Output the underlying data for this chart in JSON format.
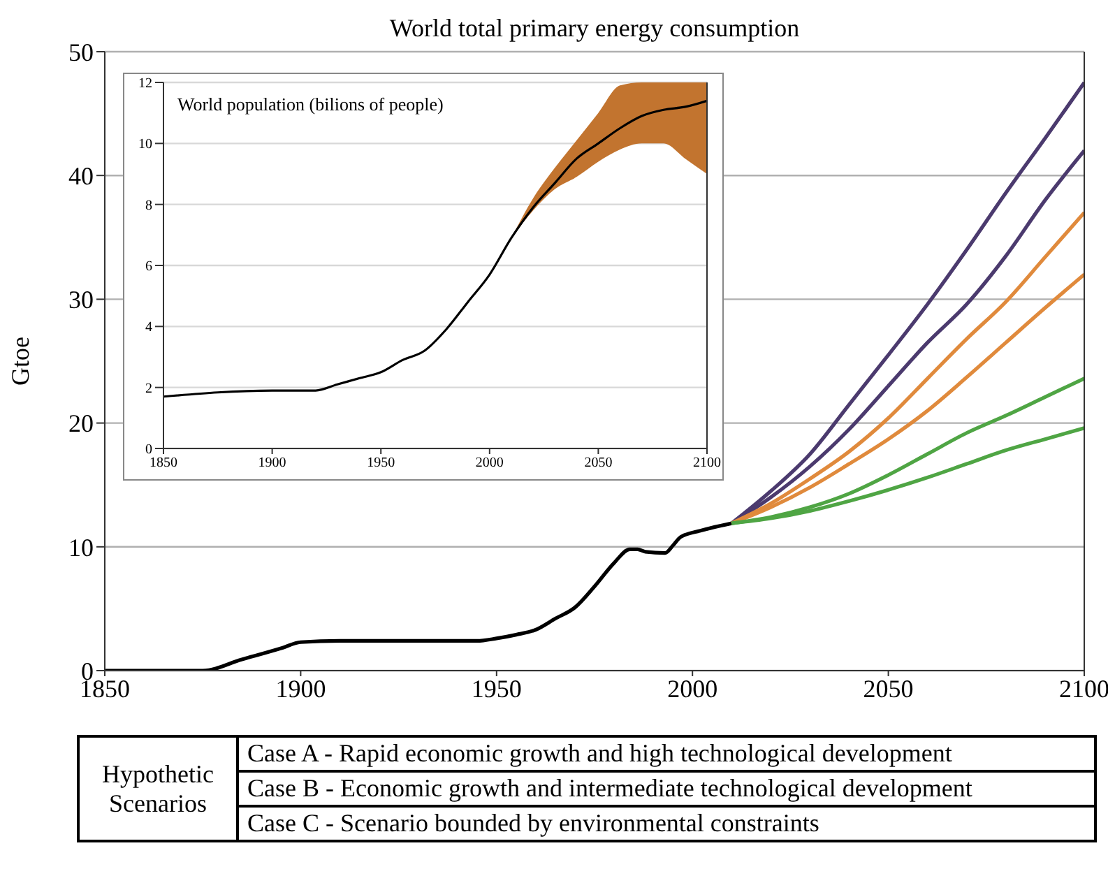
{
  "chart_data": [
    {
      "type": "line",
      "title": "World total primary energy consumption",
      "ylabel": "Gtoe",
      "xlim": [
        1850,
        2100
      ],
      "xticks": [
        1850,
        1900,
        1950,
        2000,
        2050,
        2100
      ],
      "ylim": [
        0,
        50
      ],
      "yticks": [
        0,
        10,
        20,
        30,
        40,
        50
      ],
      "grid": "y",
      "series": [
        {
          "color": "#000000",
          "x": [
            1850,
            1860,
            1875,
            1885,
            1895,
            1900,
            1910,
            1930,
            1945,
            1950,
            1955,
            1960,
            1965,
            1970,
            1975,
            1980,
            1984,
            1986,
            1988,
            1993,
            1995,
            1997,
            2002,
            2010
          ],
          "values": [
            0,
            0,
            0,
            0.9,
            1.8,
            2.3,
            2.4,
            2.4,
            2.4,
            2.6,
            2.9,
            3.3,
            4.2,
            5.1,
            6.8,
            8.7,
            9.8,
            9.8,
            9.6,
            9.5,
            10.1,
            10.8,
            11.3,
            11.9
          ]
        },
        {
          "color": "#4b3a6e",
          "x": [
            2010,
            2020,
            2030,
            2040,
            2050,
            2060,
            2070,
            2080,
            2090,
            2100
          ],
          "values": [
            11.9,
            14.5,
            17.5,
            21.5,
            25.5,
            29.6,
            34,
            38.6,
            43,
            47.5
          ]
        },
        {
          "color": "#4b3a6e",
          "x": [
            2010,
            2020,
            2030,
            2040,
            2050,
            2060,
            2070,
            2080,
            2090,
            2100
          ],
          "values": [
            11.9,
            14,
            16.5,
            19.5,
            23,
            26.5,
            29.6,
            33.5,
            38,
            42
          ]
        },
        {
          "color": "#e08a3c",
          "x": [
            2010,
            2020,
            2030,
            2040,
            2050,
            2060,
            2070,
            2080,
            2090,
            2100
          ],
          "values": [
            11.9,
            13.5,
            15.5,
            17.7,
            20.4,
            23.6,
            26.8,
            29.8,
            33.4,
            37
          ]
        },
        {
          "color": "#e08a3c",
          "x": [
            2010,
            2020,
            2030,
            2040,
            2050,
            2060,
            2070,
            2080,
            2090,
            2100
          ],
          "values": [
            11.9,
            13.2,
            14.8,
            16.7,
            18.7,
            21,
            23.7,
            26.5,
            29.3,
            32
          ]
        },
        {
          "color": "#4fa544",
          "x": [
            2010,
            2020,
            2030,
            2040,
            2050,
            2060,
            2070,
            2080,
            2090,
            2100
          ],
          "values": [
            11.9,
            12.4,
            13.2,
            14.3,
            15.8,
            17.5,
            19.2,
            20.6,
            22.1,
            23.6
          ]
        },
        {
          "color": "#4fa544",
          "x": [
            2010,
            2020,
            2030,
            2040,
            2050,
            2060,
            2070,
            2080,
            2090,
            2100
          ],
          "values": [
            11.9,
            12.3,
            12.9,
            13.7,
            14.6,
            15.6,
            16.7,
            17.8,
            18.7,
            19.6
          ]
        }
      ],
      "annotations": [
        "Hypothetic Scenarios",
        "Case A - Rapid economic growth and high technological development",
        "Case B - Economic growth and intermediate technological development",
        "Case C - Scenario bounded by environmental constraints"
      ]
    },
    {
      "type": "line",
      "title": "World population (bilions of people)",
      "xlim": [
        1850,
        2100
      ],
      "xticks": [
        1850,
        1900,
        1950,
        2000,
        2050,
        2100
      ],
      "ylim": [
        0,
        12
      ],
      "yticks": [
        0,
        2,
        4,
        6,
        8,
        10,
        12
      ],
      "grid": "y",
      "series": [
        {
          "color": "#000000",
          "x": [
            1850,
            1900,
            1920,
            1930,
            1940,
            1950,
            1960,
            1970,
            1980,
            1990,
            2000,
            2010,
            2020,
            2030,
            2040,
            2050,
            2060,
            2070,
            2080,
            2090,
            2100
          ],
          "values": [
            1.7,
            1.9,
            1.9,
            2.1,
            2.3,
            2.5,
            2.9,
            3.2,
            3.9,
            4.8,
            5.7,
            6.9,
            7.9,
            8.7,
            9.5,
            10.0,
            10.5,
            10.9,
            11.1,
            11.2,
            11.4
          ],
          "lower": [
            null,
            null,
            null,
            null,
            null,
            null,
            null,
            null,
            null,
            null,
            null,
            6.9,
            7.8,
            8.5,
            8.9,
            9.4,
            9.8,
            10.0,
            10.0,
            9.5,
            9.0
          ],
          "upper": [
            null,
            null,
            null,
            null,
            null,
            null,
            null,
            null,
            null,
            null,
            null,
            6.9,
            8.2,
            9.2,
            10.1,
            11.0,
            11.9,
            12,
            12,
            12,
            12
          ]
        }
      ]
    }
  ]
}
